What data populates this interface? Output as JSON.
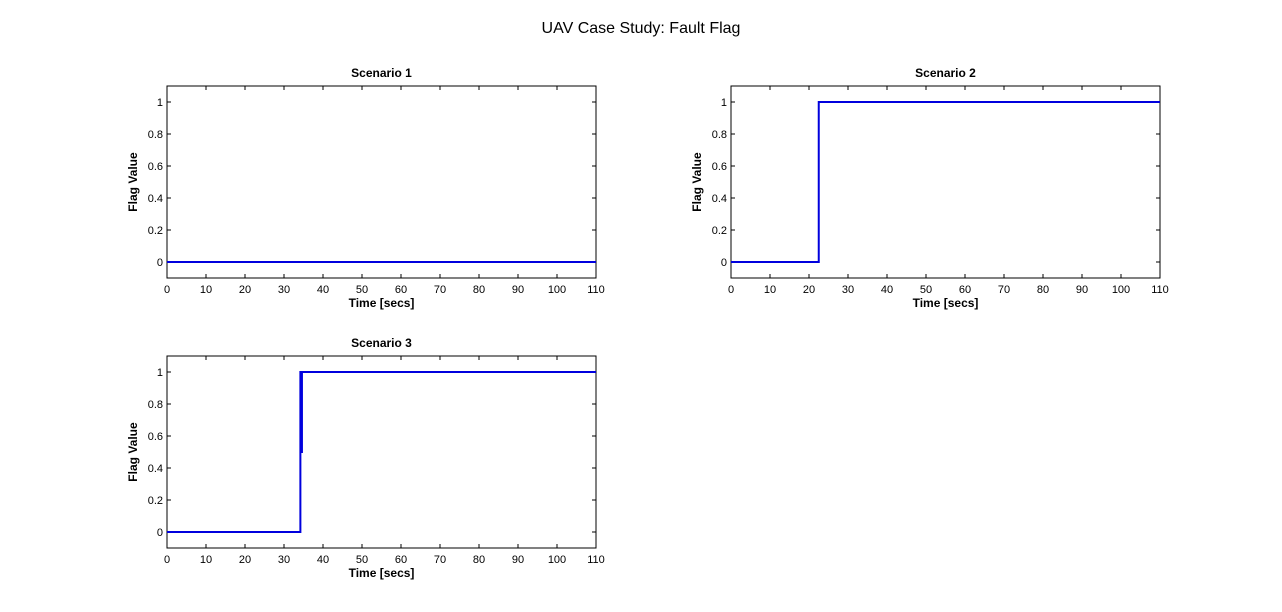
{
  "figure": {
    "title": "UAV Case Study: Fault Flag"
  },
  "colors": {
    "series": "#0000dd",
    "axes": "#000000"
  },
  "chart_data": [
    {
      "type": "line",
      "title": "Scenario 1",
      "xlabel": "Time [secs]",
      "ylabel": "Flag Value",
      "xlim": [
        0,
        110
      ],
      "ylim": [
        -0.1,
        1.1
      ],
      "xticks": [
        0,
        10,
        20,
        30,
        40,
        50,
        60,
        70,
        80,
        90,
        100,
        110
      ],
      "yticks": [
        0,
        0.2,
        0.4,
        0.6,
        0.8,
        1
      ],
      "xtick_labels": [
        "0",
        "10",
        "20",
        "30",
        "40",
        "50",
        "60",
        "70",
        "80",
        "90",
        "100",
        "110"
      ],
      "ytick_labels": [
        "0",
        "0.2",
        "0.4",
        "0.6",
        "0.8",
        "1"
      ],
      "grid": false,
      "series": [
        {
          "x": [
            0,
            110
          ],
          "y": [
            0,
            0
          ]
        }
      ]
    },
    {
      "type": "line",
      "title": "Scenario 2",
      "xlabel": "Time [secs]",
      "ylabel": "Flag Value",
      "xlim": [
        0,
        110
      ],
      "ylim": [
        -0.1,
        1.1
      ],
      "xticks": [
        0,
        10,
        20,
        30,
        40,
        50,
        60,
        70,
        80,
        90,
        100,
        110
      ],
      "yticks": [
        0,
        0.2,
        0.4,
        0.6,
        0.8,
        1
      ],
      "xtick_labels": [
        "0",
        "10",
        "20",
        "30",
        "40",
        "50",
        "60",
        "70",
        "80",
        "90",
        "100",
        "110"
      ],
      "ytick_labels": [
        "0",
        "0.2",
        "0.4",
        "0.6",
        "0.8",
        "1"
      ],
      "grid": false,
      "series": [
        {
          "x": [
            0,
            22.5,
            22.5,
            110
          ],
          "y": [
            0,
            0,
            1,
            1
          ]
        }
      ]
    },
    {
      "type": "line",
      "title": "Scenario 3",
      "xlabel": "Time [secs]",
      "ylabel": "Flag Value",
      "xlim": [
        0,
        110
      ],
      "ylim": [
        -0.1,
        1.1
      ],
      "xticks": [
        0,
        10,
        20,
        30,
        40,
        50,
        60,
        70,
        80,
        90,
        100,
        110
      ],
      "yticks": [
        0,
        0.2,
        0.4,
        0.6,
        0.8,
        1
      ],
      "xtick_labels": [
        "0",
        "10",
        "20",
        "30",
        "40",
        "50",
        "60",
        "70",
        "80",
        "90",
        "100",
        "110"
      ],
      "ytick_labels": [
        "0",
        "0.2",
        "0.4",
        "0.6",
        "0.8",
        "1"
      ],
      "grid": false,
      "series": [
        {
          "x": [
            0,
            34.2,
            34.2,
            34.4,
            34.4,
            34.6,
            34.6,
            110
          ],
          "y": [
            0,
            0,
            1,
            1,
            0.5,
            0.5,
            1,
            1
          ]
        }
      ]
    }
  ]
}
